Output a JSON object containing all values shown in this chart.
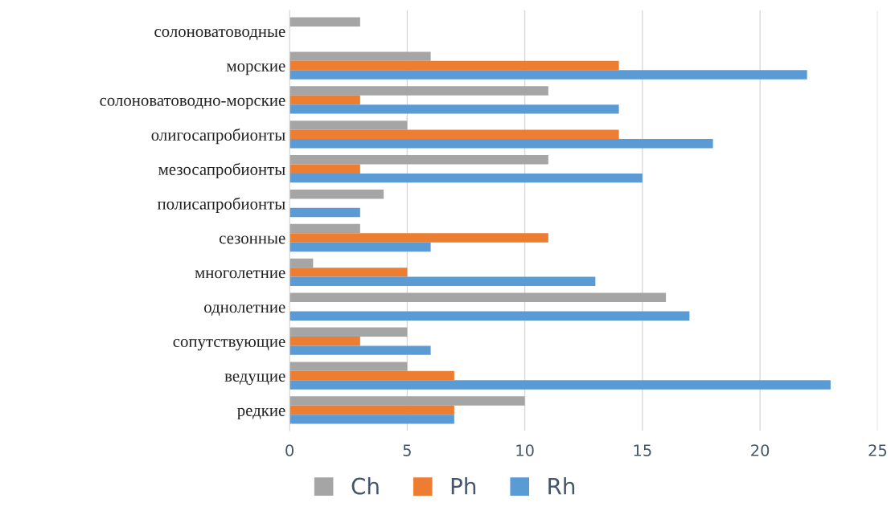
{
  "chart_data": {
    "type": "bar",
    "orientation": "horizontal",
    "categories": [
      "солоноватоводные",
      "морские",
      "солоноватоводно-морские",
      "олигосапробионты",
      "мезосапробионты",
      "полисапробионты",
      "сезонные",
      "многолетние",
      "однолетние",
      "сопутствующие",
      "ведущие",
      "редкие"
    ],
    "series": [
      {
        "name": "Ch",
        "color": "#a5a5a5",
        "values": [
          3,
          6,
          11,
          5,
          11,
          4,
          3,
          1,
          16,
          5,
          5,
          10
        ]
      },
      {
        "name": "Ph",
        "color": "#ed7d31",
        "values": [
          null,
          14,
          3,
          14,
          3,
          null,
          11,
          5,
          null,
          3,
          7,
          7
        ]
      },
      {
        "name": "Rh",
        "color": "#5b9bd5",
        "values": [
          null,
          22,
          14,
          18,
          15,
          3,
          6,
          13,
          17,
          6,
          23,
          7
        ]
      }
    ],
    "xlim": [
      0,
      25
    ],
    "xticks": [
      0,
      5,
      10,
      15,
      20,
      25
    ],
    "grid": "x",
    "legend": "bottom"
  }
}
